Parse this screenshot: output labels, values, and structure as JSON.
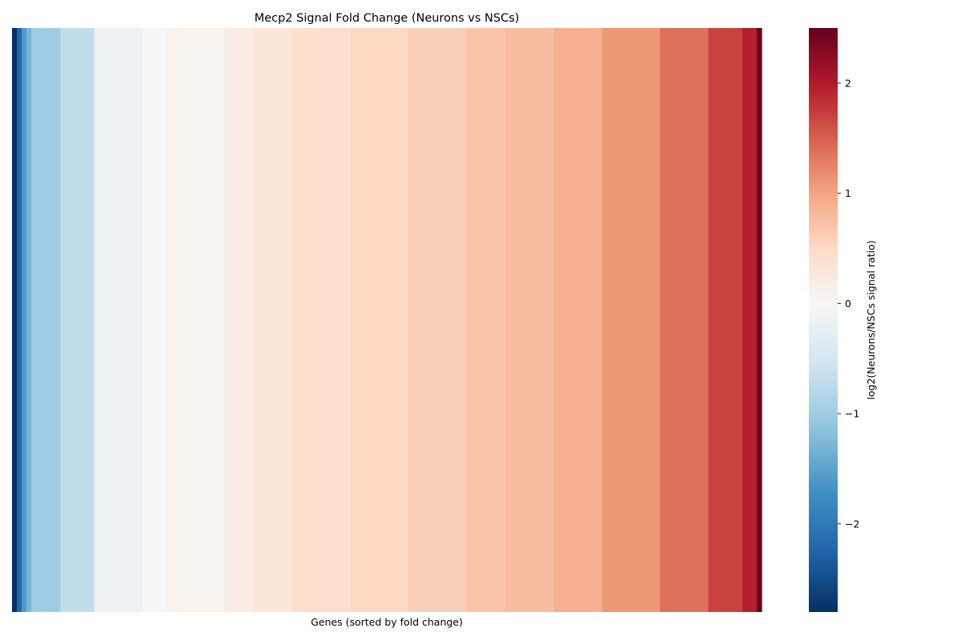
{
  "chart_data": {
    "type": "heatmap",
    "title": "Mecp2 Signal Fold Change (Neurons vs NSCs)",
    "xlabel": "Genes (sorted by fold change)",
    "colorbar_label": "log2(Neurons/NSCs signal ratio)",
    "colormap": "RdBu_r",
    "vmin": -2.8,
    "vmax": 2.5,
    "colorbar_ticks": [
      {
        "value": 2,
        "label": "2"
      },
      {
        "value": 1,
        "label": "1"
      },
      {
        "value": 0,
        "label": "0"
      },
      {
        "value": -1,
        "label": "−1"
      },
      {
        "value": -2,
        "label": "−2"
      }
    ],
    "values": [
      -2.8,
      -2.2,
      -1.6,
      -1.3,
      -1.0,
      -1.0,
      -1.0,
      -1.0,
      -1.0,
      -1.0,
      -0.7,
      -0.7,
      -0.7,
      -0.7,
      -0.7,
      -0.7,
      -0.7,
      -0.15,
      -0.15,
      -0.15,
      -0.15,
      -0.15,
      -0.15,
      -0.15,
      -0.15,
      -0.15,
      -0.15,
      0.0,
      0.0,
      0.0,
      0.0,
      0.0,
      0.08,
      0.08,
      0.08,
      0.08,
      0.08,
      0.08,
      0.08,
      0.08,
      0.08,
      0.08,
      0.08,
      0.08,
      0.2,
      0.2,
      0.2,
      0.2,
      0.2,
      0.2,
      0.3,
      0.3,
      0.3,
      0.3,
      0.3,
      0.3,
      0.3,
      0.3,
      0.42,
      0.42,
      0.42,
      0.42,
      0.42,
      0.42,
      0.42,
      0.42,
      0.42,
      0.42,
      0.42,
      0.42,
      0.52,
      0.52,
      0.52,
      0.52,
      0.52,
      0.52,
      0.52,
      0.52,
      0.52,
      0.52,
      0.52,
      0.52,
      0.6,
      0.6,
      0.6,
      0.6,
      0.6,
      0.6,
      0.6,
      0.6,
      0.6,
      0.6,
      0.6,
      0.6,
      0.72,
      0.72,
      0.72,
      0.72,
      0.72,
      0.72,
      0.72,
      0.72,
      0.78,
      0.78,
      0.78,
      0.78,
      0.78,
      0.78,
      0.78,
      0.78,
      0.78,
      0.78,
      0.9,
      0.9,
      0.9,
      0.9,
      0.9,
      0.9,
      0.9,
      0.9,
      0.9,
      0.9,
      1.1,
      1.1,
      1.1,
      1.1,
      1.1,
      1.1,
      1.1,
      1.1,
      1.1,
      1.1,
      1.1,
      1.1,
      1.38,
      1.38,
      1.38,
      1.38,
      1.38,
      1.38,
      1.38,
      1.38,
      1.38,
      1.38,
      1.7,
      1.7,
      1.7,
      1.7,
      1.7,
      1.7,
      1.7,
      1.95,
      1.95,
      1.95,
      2.5
    ]
  }
}
